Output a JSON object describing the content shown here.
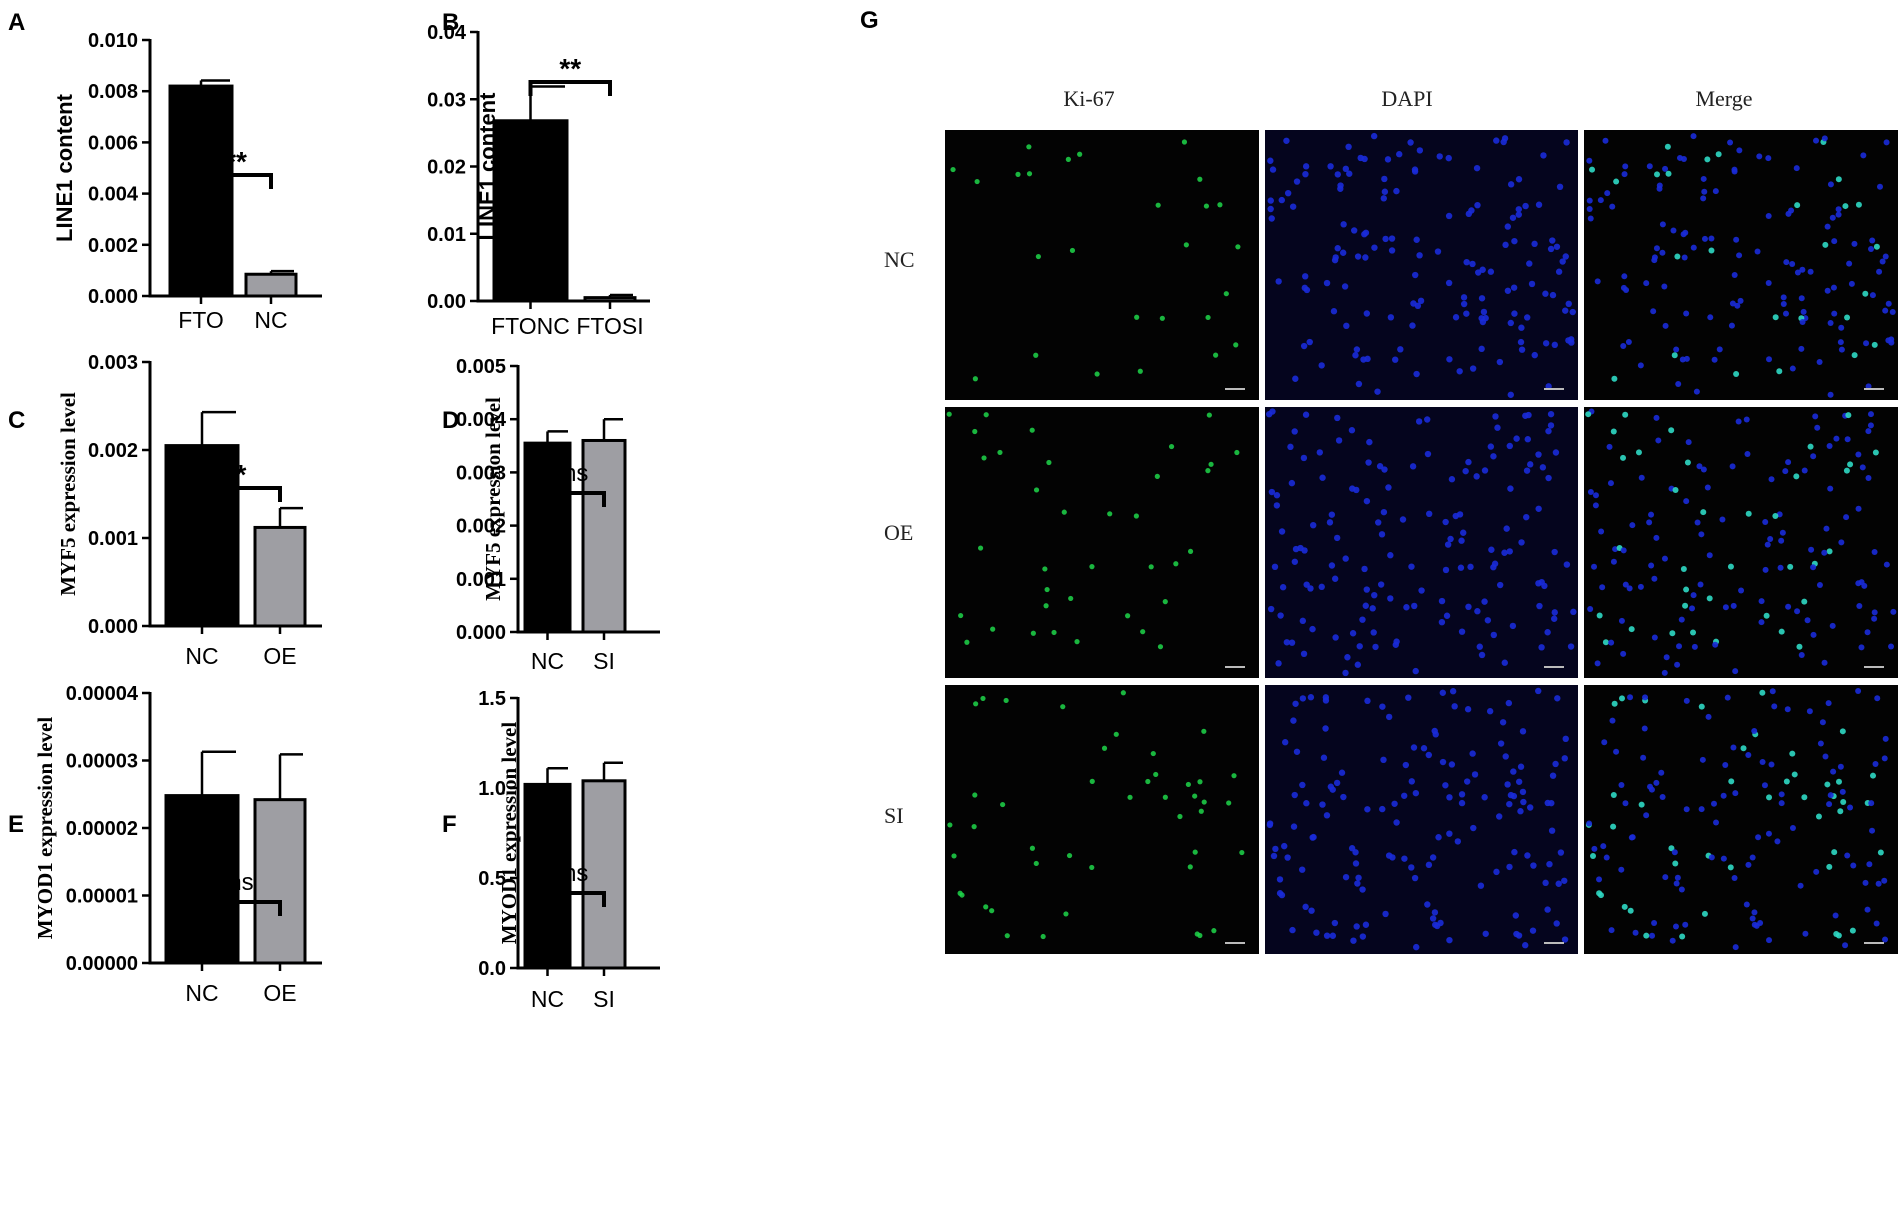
{
  "chart_data": [
    {
      "panel": "A",
      "type": "bar",
      "categories": [
        "FTO",
        "NC"
      ],
      "values": [
        0.0082,
        0.00085
      ],
      "errors": [
        0.00022,
        0.00012
      ],
      "bar_colors": [
        "#000000",
        "#9e9ea3"
      ],
      "ylabel": "LINE1 content",
      "ylim": [
        0,
        0.01
      ],
      "yticks": [
        "0.000",
        "0.002",
        "0.004",
        "0.006",
        "0.008",
        "0.010"
      ],
      "significance": "**",
      "ylabel_font": "sans"
    },
    {
      "panel": "B",
      "type": "bar",
      "categories": [
        "FTONC",
        "FTOSI"
      ],
      "values": [
        0.0268,
        0.0005
      ],
      "errors": [
        0.0051,
        0.0004
      ],
      "bar_colors": [
        "#000000",
        "#9e9ea3"
      ],
      "ylabel": "LINE1 content",
      "ylim": [
        0,
        0.04
      ],
      "yticks": [
        "0.00",
        "0.01",
        "0.02",
        "0.03",
        "0.04"
      ],
      "significance": "**",
      "ylabel_font": "sans"
    },
    {
      "panel": "C",
      "type": "bar",
      "categories": [
        "NC",
        "OE"
      ],
      "values": [
        0.00205,
        0.00112
      ],
      "errors": [
        0.00038,
        0.00022
      ],
      "bar_colors": [
        "#000000",
        "#9e9ea3"
      ],
      "ylabel": "MYF5 expression level",
      "ylim": [
        0,
        0.003
      ],
      "yticks": [
        "0.000",
        "0.001",
        "0.002",
        "0.003"
      ],
      "significance": "*",
      "ylabel_font": "serif"
    },
    {
      "panel": "D",
      "type": "bar",
      "categories": [
        "NC",
        "SI"
      ],
      "values": [
        0.00355,
        0.0036
      ],
      "errors": [
        0.00022,
        0.0004
      ],
      "bar_colors": [
        "#000000",
        "#9e9ea3"
      ],
      "ylabel": "MYF5 expression level",
      "ylim": [
        0,
        0.005
      ],
      "yticks": [
        "0.000",
        "0.001",
        "0.002",
        "0.003",
        "0.004",
        "0.005"
      ],
      "significance": "ns",
      "ylabel_font": "serif"
    },
    {
      "panel": "E",
      "type": "bar",
      "categories": [
        "NC",
        "OE"
      ],
      "values": [
        2.48e-05,
        2.42e-05
      ],
      "errors": [
        6.5e-06,
        6.7e-06
      ],
      "bar_colors": [
        "#000000",
        "#9e9ea3"
      ],
      "ylabel": "MYOD1 expression level",
      "ylim": [
        0,
        4e-05
      ],
      "yticks": [
        "0.00000",
        "0.00001",
        "0.00002",
        "0.00003",
        "0.00004"
      ],
      "significance": "ns",
      "ylabel_font": "serif"
    },
    {
      "panel": "F",
      "type": "bar",
      "categories": [
        "NC",
        "SI"
      ],
      "values": [
        1.02,
        1.04
      ],
      "errors": [
        0.09,
        0.1
      ],
      "bar_colors": [
        "#000000",
        "#9e9ea3"
      ],
      "ylabel": "MYOD1 expression level",
      "ylim": [
        0,
        1.5
      ],
      "yticks": [
        "0.0",
        "0.5",
        "1.0",
        "1.5"
      ],
      "significance": "ns",
      "ylabel_font": "serif"
    }
  ],
  "microscopy": {
    "panel": "G",
    "columns": [
      "Ki-67",
      "DAPI",
      "Merge"
    ],
    "rows": [
      "NC",
      "OE",
      "SI"
    ],
    "channel_colors": [
      "#1fd64a",
      "#1a2bd8",
      "#2fd9c4"
    ]
  }
}
